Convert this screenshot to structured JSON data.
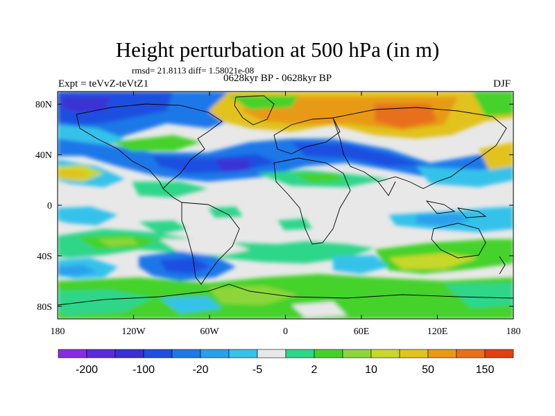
{
  "title": "Height perturbation at 500 hPa (in m)",
  "stats": "rmsd= 21.8113  diff= 1.58021e-08",
  "left_label": "Expt = teVvZ-teVtZ1",
  "center_label": "0628kyr BP - 0628kyr BP",
  "right_label": "DJF",
  "x_ticks": [
    "180",
    "120W",
    "60W",
    "0",
    "60E",
    "120E",
    "180"
  ],
  "y_ticks": [
    "80N",
    "40N",
    "0",
    "40S",
    "80S"
  ],
  "colorbar": {
    "colors": [
      "#8a2be2",
      "#5a2cd8",
      "#3a30d4",
      "#1e4fe0",
      "#1f78e8",
      "#2aa0ec",
      "#36c2ea",
      "#e8e8e8",
      "#2fd68a",
      "#44d22a",
      "#8cd63a",
      "#c8d82c",
      "#e2c21c",
      "#e89a16",
      "#e8701a",
      "#e04010"
    ],
    "labels": [
      "-200",
      "-100",
      "-20",
      "-5",
      "2",
      "10",
      "50",
      "150"
    ]
  },
  "palette": {
    "deep_blue": "#1e4fe0",
    "blue": "#1f78e8",
    "light_blue": "#36c2ea",
    "neutral": "#e8e8e8",
    "teal": "#2fd68a",
    "green": "#44d22a",
    "yellow_green": "#c8d82c",
    "yellow": "#e2c21c",
    "orange": "#e89a16",
    "dark_orange": "#e8701a",
    "purple": "#5a2cd8"
  }
}
